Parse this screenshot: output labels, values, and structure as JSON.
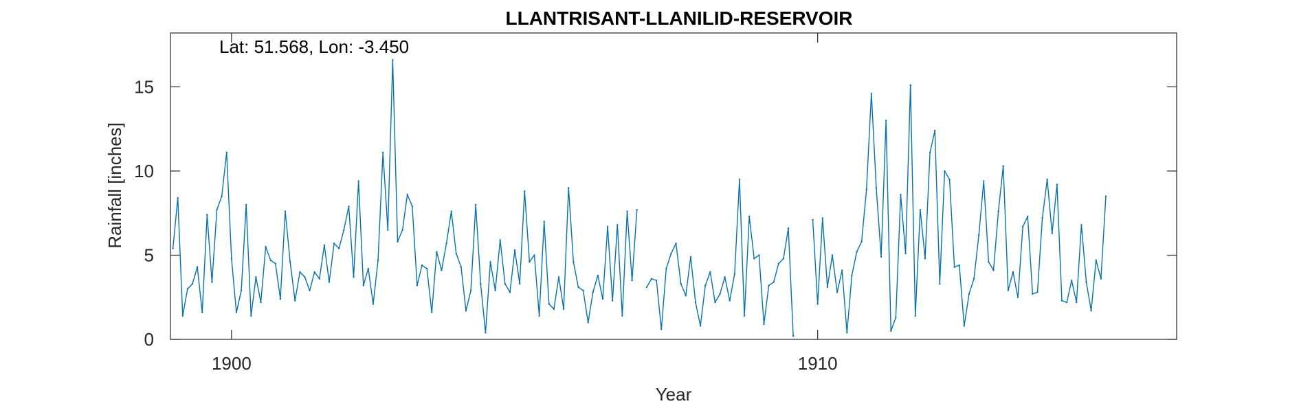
{
  "chart_data": {
    "type": "line",
    "title": "LLANTRISANT-LLANILID-RESERVOIR",
    "annotation": "Lat: 51.568, Lon: -3.450",
    "xlabel": "Year",
    "ylabel": "Rainfall [inches]",
    "xlim": [
      1898.958,
      1916.125
    ],
    "ylim": [
      0,
      18.2
    ],
    "x_ticks": [
      {
        "value": 1900,
        "label": "1900"
      },
      {
        "value": 1910,
        "label": "1910"
      }
    ],
    "y_ticks": [
      {
        "value": 0,
        "label": "0"
      },
      {
        "value": 5,
        "label": "5"
      },
      {
        "value": 10,
        "label": "10"
      },
      {
        "value": 15,
        "label": "15"
      }
    ],
    "grid": false,
    "series_color": "#0072BD",
    "series": [
      {
        "start_year": 1899,
        "start_month": 1,
        "values": [
          5.4,
          8.4,
          1.4,
          3.0,
          3.3,
          4.3,
          1.6,
          7.4,
          3.4,
          7.7,
          8.5,
          11.1,
          4.8,
          1.6,
          2.9,
          8.0,
          1.4,
          3.7,
          2.2,
          5.5,
          4.7,
          4.5,
          2.4,
          7.6,
          4.6,
          2.3,
          4.0,
          3.7,
          2.9,
          4.0,
          3.6,
          5.6,
          3.4,
          5.7,
          5.4,
          6.5,
          7.9,
          3.7,
          9.4,
          3.2,
          4.2,
          2.1,
          4.7,
          11.1,
          6.5,
          16.6,
          5.8,
          6.5,
          8.6,
          7.9,
          3.2,
          4.4,
          4.2,
          1.6,
          5.2,
          4.1,
          5.7,
          7.6,
          5.1,
          4.3,
          1.7,
          2.9,
          8.0,
          3.3,
          0.4,
          4.6,
          2.9,
          5.9,
          3.3,
          2.8,
          5.3,
          3.3,
          8.8,
          4.6,
          5.0,
          1.4,
          7.0,
          2.1,
          1.8,
          3.7,
          1.8,
          9.0,
          4.6,
          3.1,
          2.9,
          1.0,
          2.8,
          3.8,
          2.4,
          6.7,
          2.3,
          6.8,
          1.4,
          7.6,
          3.5,
          7.7,
          null,
          3.1,
          3.6,
          3.5,
          0.6,
          4.2,
          5.1,
          5.7,
          3.3,
          2.6,
          4.9,
          2.2,
          0.8,
          3.2,
          4.0,
          2.2,
          2.7,
          3.7,
          2.3,
          3.9,
          9.5,
          1.4,
          7.3,
          4.8,
          5.0,
          0.9,
          3.2,
          3.4,
          4.5,
          4.8,
          6.6,
          0.2,
          null,
          null,
          null,
          7.1,
          2.1,
          7.2,
          3.1,
          5.0,
          2.8,
          4.1,
          0.4,
          3.8,
          5.2,
          5.8,
          8.9,
          14.6,
          9.0,
          4.9,
          13.0,
          0.5,
          1.3,
          8.6,
          5.1,
          15.1,
          1.4,
          7.7,
          4.8,
          11.1,
          12.4,
          3.3,
          10.0,
          9.5,
          4.3,
          4.4,
          0.8,
          2.7,
          3.6,
          6.2,
          9.4,
          4.6,
          4.1,
          7.6,
          10.3,
          2.9,
          4.0,
          2.5,
          6.7,
          7.3,
          2.7,
          2.8,
          7.2,
          9.5,
          6.3,
          9.2,
          2.3,
          2.2,
          3.5,
          2.2,
          6.8,
          3.4,
          1.7,
          4.7,
          3.6,
          8.5
        ]
      }
    ]
  }
}
